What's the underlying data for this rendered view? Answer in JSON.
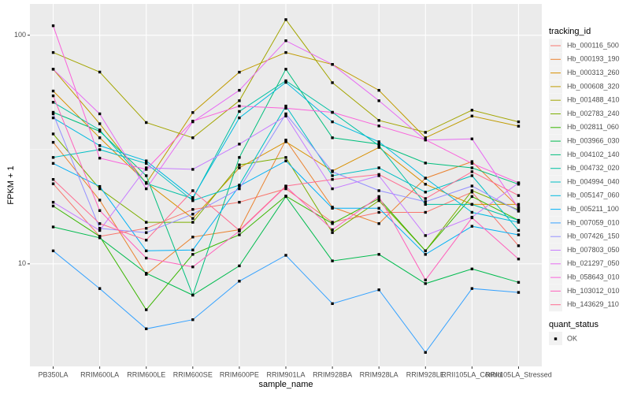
{
  "chart_data": {
    "type": "line",
    "x_label": "sample_name",
    "y_label": "FPKM + 1",
    "log_y": true,
    "grid": true,
    "legend_position": "right",
    "legend_title": "tracking_id",
    "quant_status": {
      "title": "quant_status",
      "labels": [
        "OK"
      ]
    },
    "categories": [
      "PB350LA",
      "RRIM600LA",
      "RRIM600LE",
      "RRIM600SE",
      "RRIM600PE",
      "RRIM901LA",
      "RRIM928BA",
      "RRIM928LA",
      "RRIM928LE",
      "RRII105LA_Control",
      "RRII105LA_Stressed"
    ],
    "ylim": [
      3.56,
      137
    ],
    "yticks": [
      10,
      100
    ],
    "series": [
      {
        "name": "Hb_000116_500",
        "color": "#F8766D",
        "values": [
          22.4,
          13.2,
          14.3,
          17.3,
          18.6,
          21.3,
          15.2,
          16.8,
          16.8,
          20.6,
          12
        ]
      },
      {
        "name": "Hb_000193_190",
        "color": "#EA8331",
        "values": [
          34,
          19,
          9,
          13.1,
          14.1,
          34.8,
          17.7,
          15,
          23.7,
          28,
          17.7
        ]
      },
      {
        "name": "Hb_000313_260",
        "color": "#D89000",
        "values": [
          57,
          35.6,
          22.7,
          15.8,
          26.3,
          34.2,
          25.5,
          32.3,
          22.3,
          18.2,
          18.2
        ]
      },
      {
        "name": "Hb_000608_320",
        "color": "#C09B00",
        "values": [
          71,
          41,
          22.5,
          45.9,
          68.9,
          84,
          74.5,
          57.4,
          35.6,
          44.3,
          40
        ]
      },
      {
        "name": "Hb_001488_410",
        "color": "#A3A500",
        "values": [
          84,
          69,
          41.5,
          35.6,
          51.7,
          117,
          62,
          42.4,
          37.6,
          47,
          41.8
        ]
      },
      {
        "name": "Hb_002783_240",
        "color": "#7CAE00",
        "values": [
          37,
          21.3,
          15.2,
          15.2,
          27.1,
          29.2,
          13.7,
          18.9,
          11.4,
          20.9,
          17.2
        ]
      },
      {
        "name": "Hb_002811_060",
        "color": "#39B600",
        "values": [
          17.9,
          13.2,
          6.3,
          11,
          13.4,
          19.8,
          15,
          19.3,
          11.4,
          19.7,
          15.5
        ]
      },
      {
        "name": "Hb_003966_030",
        "color": "#00BB4E",
        "values": [
          14.5,
          13,
          9.1,
          7.3,
          9.8,
          19.7,
          10.3,
          11,
          8.2,
          9.5,
          8.3
        ]
      },
      {
        "name": "Hb_004102_140",
        "color": "#00BF7D",
        "values": [
          46,
          38,
          24.3,
          7.3,
          29.2,
          71,
          35.6,
          33.4,
          27.6,
          26.3,
          22.3
        ]
      },
      {
        "name": "Hb_004732_020",
        "color": "#00C1A3",
        "values": [
          50.9,
          38.5,
          22.5,
          19.3,
          46.4,
          63.2,
          46,
          32.9,
          18.2,
          18.2,
          15.5
        ]
      },
      {
        "name": "Hb_004994_040",
        "color": "#00BFC4",
        "values": [
          29.2,
          31.6,
          27.5,
          18.9,
          22.1,
          49,
          24.3,
          26.3,
          20.6,
          24.3,
          14
        ]
      },
      {
        "name": "Hb_005147_060",
        "color": "#00BAE0",
        "values": [
          43.5,
          32.9,
          28.2,
          19.5,
          43.5,
          62.2,
          41.8,
          34.2,
          23.7,
          16.8,
          15.2
        ]
      },
      {
        "name": "Hb_005211_100",
        "color": "#00B0F6",
        "values": [
          27.5,
          21.8,
          11.4,
          11.5,
          21.9,
          28.2,
          17.5,
          17.5,
          11,
          14.6,
          13.4
        ]
      },
      {
        "name": "Hb_007059_010",
        "color": "#35A2FF",
        "values": [
          11.4,
          7.8,
          5.2,
          5.7,
          8.4,
          10.9,
          6.7,
          7.7,
          4.1,
          7.8,
          7.5
        ]
      },
      {
        "name": "Hb_007426_150",
        "color": "#9590FF",
        "values": [
          45.3,
          14.3,
          13.7,
          16.5,
          21.3,
          45.3,
          25.3,
          20.9,
          18.7,
          21.9,
          17
        ]
      },
      {
        "name": "Hb_007803_050",
        "color": "#C77CFF",
        "values": [
          18.6,
          14,
          26.3,
          25.9,
          33.4,
          44.3,
          21.3,
          24.3,
          13.3,
          16,
          22.6
        ]
      },
      {
        "name": "Hb_021297_050",
        "color": "#E76BF3",
        "values": [
          71,
          45.3,
          21.3,
          41.8,
          57.4,
          94.6,
          74.5,
          51.7,
          34.8,
          35.2,
          17.5
        ]
      },
      {
        "name": "Hb_058643_010",
        "color": "#FA62DB",
        "values": [
          110,
          29,
          25.9,
          42.1,
          49,
          47.9,
          46,
          40.1,
          34.9,
          27.5,
          22.6
        ]
      },
      {
        "name": "Hb_103012_010",
        "color": "#FF62BC",
        "values": [
          54.3,
          17.1,
          10.6,
          9.7,
          13.9,
          21.8,
          14.1,
          19.7,
          8.5,
          15.9,
          10.5
        ]
      },
      {
        "name": "Hb_143629_110",
        "color": "#FF6C91",
        "values": [
          23.4,
          15,
          12.7,
          20.9,
          14,
          21.9,
          23.4,
          24.6,
          19.3,
          25.3,
          19.9
        ]
      }
    ]
  }
}
